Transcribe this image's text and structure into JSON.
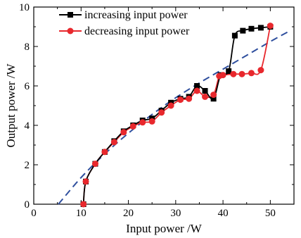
{
  "chart_data": {
    "type": "line",
    "title": "",
    "xlabel": "Input power /W",
    "ylabel": "Output power /W",
    "xlim": [
      0,
      55
    ],
    "ylim": [
      0,
      10
    ],
    "xticks": [
      0,
      10,
      20,
      30,
      40,
      50
    ],
    "yticks": [
      0,
      2,
      4,
      6,
      8,
      10
    ],
    "grid": false,
    "legend_position": "top-left",
    "series": [
      {
        "name": "increasing input power",
        "color": "#000000",
        "marker": "square",
        "x": [
          10.5,
          11.0,
          13.0,
          15.0,
          17.0,
          19.0,
          21.0,
          23.0,
          25.0,
          27.0,
          29.0,
          31.0,
          32.8,
          34.5,
          36.2,
          38.0,
          39.5,
          41.2,
          42.5,
          44.2,
          46.0,
          48.0,
          50.0
        ],
        "y": [
          0.0,
          1.15,
          2.05,
          2.65,
          3.2,
          3.7,
          4.0,
          4.25,
          4.35,
          4.75,
          5.15,
          5.35,
          5.45,
          6.0,
          5.75,
          5.35,
          6.55,
          6.75,
          8.55,
          8.8,
          8.9,
          8.95,
          9.0
        ]
      },
      {
        "name": "decreasing input power",
        "color": "#e8282d",
        "marker": "circle",
        "x": [
          10.5,
          11.0,
          13.0,
          15.0,
          17.0,
          19.0,
          21.0,
          23.0,
          25.0,
          27.0,
          29.0,
          31.0,
          32.8,
          34.5,
          36.2,
          38.0,
          39.2,
          40.0,
          42.2,
          44.0,
          46.0,
          48.0,
          50.0
        ],
        "y": [
          0.0,
          1.15,
          2.05,
          2.65,
          3.15,
          3.65,
          3.95,
          4.15,
          4.2,
          4.65,
          5.0,
          5.3,
          5.35,
          5.75,
          5.45,
          5.55,
          6.5,
          6.55,
          6.6,
          6.6,
          6.65,
          6.8,
          9.05
        ]
      },
      {
        "name": "",
        "color": "#2f4f9e",
        "style": "dashed",
        "x": [
          5.2,
          10.0,
          15.0,
          20.0,
          25.0,
          30.0,
          35.0,
          40.0,
          45.0,
          50.0,
          53.8
        ],
        "y": [
          0.0,
          1.35,
          2.55,
          3.6,
          4.55,
          5.4,
          6.15,
          6.85,
          7.55,
          8.25,
          8.75
        ]
      }
    ]
  }
}
